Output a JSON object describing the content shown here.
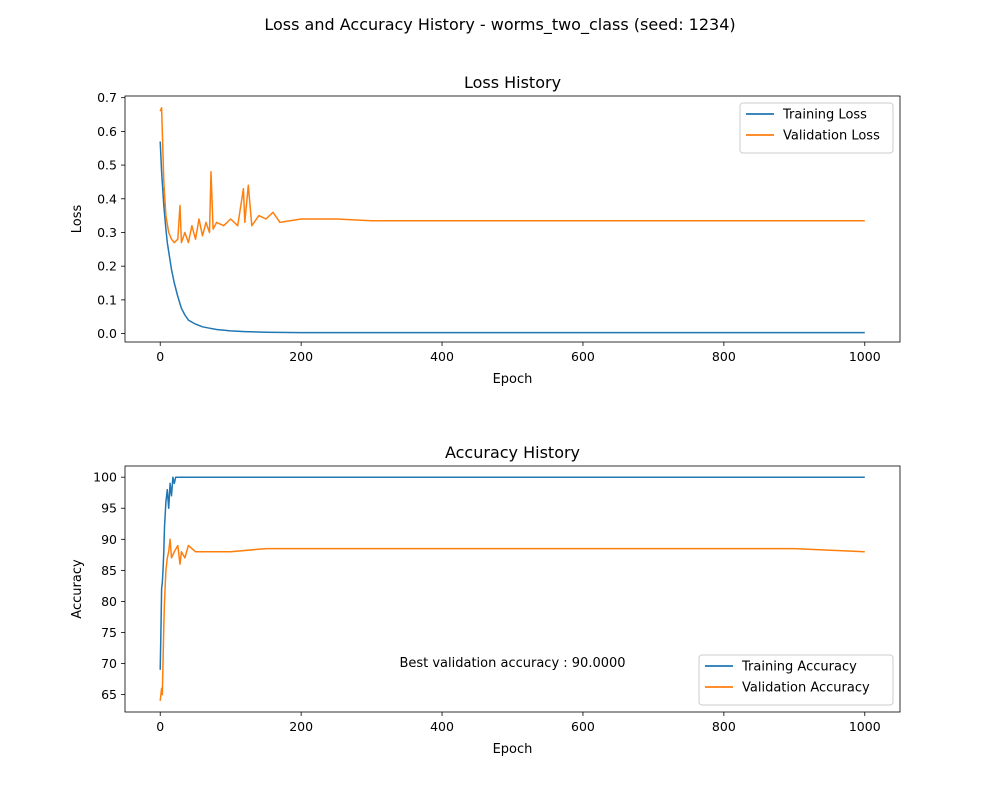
{
  "figure": {
    "suptitle": "Loss and Accuracy History - worms_two_class (seed: 1234)"
  },
  "colors": {
    "training": "#1f77b4",
    "validation": "#ff7f0e"
  },
  "chart_data": [
    {
      "type": "line",
      "title": "Loss History",
      "xlabel": "Epoch",
      "ylabel": "Loss",
      "xlim": [
        -50,
        1050
      ],
      "ylim": [
        -0.025,
        0.705
      ],
      "xticks": [
        0,
        200,
        400,
        600,
        800,
        1000
      ],
      "xtick_labels": [
        "0",
        "200",
        "400",
        "600",
        "800",
        "1000"
      ],
      "yticks": [
        0.0,
        0.1,
        0.2,
        0.3,
        0.4,
        0.5,
        0.6,
        0.7
      ],
      "ytick_labels": [
        "0.0",
        "0.1",
        "0.2",
        "0.3",
        "0.4",
        "0.5",
        "0.6",
        "0.7"
      ],
      "grid": false,
      "legend": "upper-right",
      "series": [
        {
          "name": "Training Loss",
          "color": "#1f77b4",
          "x": [
            0,
            2,
            5,
            8,
            10,
            13,
            16,
            20,
            25,
            30,
            35,
            40,
            50,
            60,
            70,
            80,
            100,
            120,
            150,
            200,
            300,
            400,
            500,
            600,
            700,
            800,
            900,
            1000
          ],
          "y": [
            0.57,
            0.48,
            0.38,
            0.31,
            0.27,
            0.23,
            0.19,
            0.15,
            0.11,
            0.075,
            0.055,
            0.04,
            0.028,
            0.02,
            0.016,
            0.012,
            0.008,
            0.006,
            0.004,
            0.003,
            0.003,
            0.003,
            0.003,
            0.003,
            0.003,
            0.003,
            0.003,
            0.003
          ]
        },
        {
          "name": "Validation Loss",
          "color": "#ff7f0e",
          "x": [
            0,
            2,
            3,
            5,
            8,
            12,
            16,
            20,
            25,
            28,
            30,
            35,
            40,
            45,
            50,
            55,
            60,
            65,
            70,
            72,
            75,
            80,
            90,
            100,
            110,
            118,
            120,
            125,
            130,
            140,
            150,
            160,
            170,
            200,
            250,
            300,
            400,
            500,
            600,
            700,
            800,
            900,
            1000
          ],
          "y": [
            0.66,
            0.67,
            0.6,
            0.45,
            0.35,
            0.3,
            0.28,
            0.27,
            0.28,
            0.38,
            0.27,
            0.3,
            0.27,
            0.32,
            0.28,
            0.34,
            0.29,
            0.33,
            0.3,
            0.48,
            0.31,
            0.33,
            0.32,
            0.34,
            0.32,
            0.43,
            0.33,
            0.44,
            0.32,
            0.35,
            0.34,
            0.36,
            0.33,
            0.34,
            0.34,
            0.335,
            0.335,
            0.335,
            0.335,
            0.335,
            0.335,
            0.335,
            0.335
          ]
        }
      ]
    },
    {
      "type": "line",
      "title": "Accuracy History",
      "xlabel": "Epoch",
      "ylabel": "Accuracy",
      "xlim": [
        -50,
        1050
      ],
      "ylim": [
        62.2,
        101.8
      ],
      "xticks": [
        0,
        200,
        400,
        600,
        800,
        1000
      ],
      "xtick_labels": [
        "0",
        "200",
        "400",
        "600",
        "800",
        "1000"
      ],
      "yticks": [
        65,
        70,
        75,
        80,
        85,
        90,
        95,
        100
      ],
      "ytick_labels": [
        "65",
        "70",
        "75",
        "80",
        "85",
        "90",
        "95",
        "100"
      ],
      "grid": false,
      "legend": "lower-right",
      "annotation": "Best validation accuracy : 90.0000",
      "series": [
        {
          "name": "Training Accuracy",
          "color": "#1f77b4",
          "x": [
            0,
            1,
            2,
            3,
            4,
            5,
            6,
            7,
            8,
            10,
            12,
            14,
            16,
            18,
            20,
            22,
            25,
            30,
            40,
            100,
            200,
            400,
            600,
            800,
            1000
          ],
          "y": [
            69,
            75,
            82,
            83,
            85,
            88,
            92,
            94,
            96,
            98,
            95,
            99,
            97,
            100,
            99,
            100,
            100,
            100,
            100,
            100,
            100,
            100,
            100,
            100,
            100
          ]
        },
        {
          "name": "Validation Accuracy",
          "color": "#ff7f0e",
          "x": [
            0,
            1,
            2,
            3,
            4,
            5,
            6,
            8,
            10,
            12,
            14,
            16,
            20,
            25,
            28,
            30,
            35,
            40,
            50,
            60,
            80,
            100,
            150,
            200,
            300,
            400,
            500,
            600,
            700,
            800,
            900,
            1000
          ],
          "y": [
            64,
            65,
            66,
            65,
            70,
            76,
            80,
            85,
            87,
            88,
            90,
            87,
            88,
            89,
            86,
            88,
            87,
            89,
            88,
            88,
            88,
            88,
            88.5,
            88.5,
            88.5,
            88.5,
            88.5,
            88.5,
            88.5,
            88.5,
            88.5,
            88
          ]
        }
      ]
    }
  ]
}
